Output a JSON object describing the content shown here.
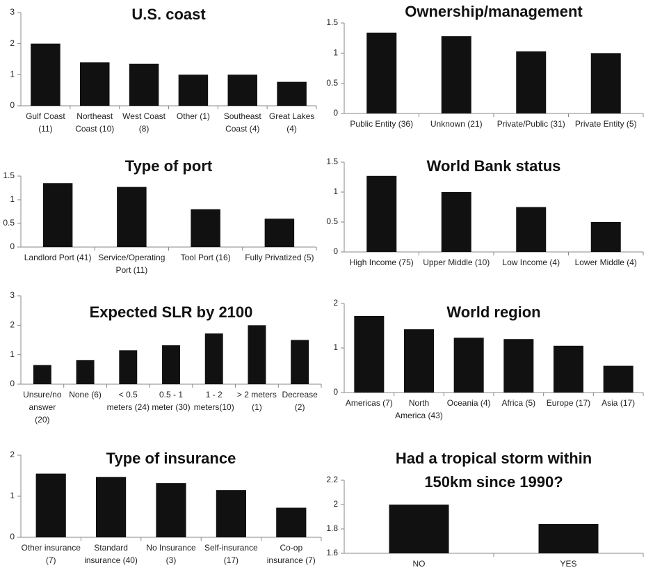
{
  "chart_data": [
    {
      "type": "bar",
      "title": "U.S. coast",
      "categories": [
        "Gulf Coast (11)",
        "Northeast Coast (10)",
        "West Coast (8)",
        "Other (1)",
        "Southeast Coast (4)",
        "Great Lakes (4)"
      ],
      "values": [
        2.0,
        1.4,
        1.35,
        1.0,
        1.0,
        0.77
      ],
      "color": "#111111",
      "ylim": [
        0,
        3
      ],
      "yticks": [
        0,
        1,
        2,
        3
      ]
    },
    {
      "type": "bar",
      "title": "Ownership/management",
      "categories": [
        "Public Entity (36)",
        "Unknown (21)",
        "Private/Public (31)",
        "Private Entity (5)"
      ],
      "values": [
        1.34,
        1.28,
        1.03,
        1.0
      ],
      "color": "#111111",
      "ylim": [
        0,
        1.5
      ],
      "yticks": [
        0,
        0.5,
        1,
        1.5
      ]
    },
    {
      "type": "bar",
      "title": "Type of port",
      "categories": [
        "Landlord Port (41)",
        "Service/Operating Port (11)",
        "Tool Port (16)",
        "Fully Privatized (5)"
      ],
      "values": [
        1.35,
        1.27,
        0.8,
        0.6
      ],
      "color": "#111111",
      "ylim": [
        0,
        1.5
      ],
      "yticks": [
        0,
        0.5,
        1,
        1.5
      ]
    },
    {
      "type": "bar",
      "title": "World Bank status",
      "categories": [
        "High Income (75)",
        "Upper Middle (10)",
        "Low Income (4)",
        "Lower Middle (4)"
      ],
      "values": [
        1.27,
        1.0,
        0.75,
        0.5
      ],
      "color": "#111111",
      "ylim": [
        0,
        1.5
      ],
      "yticks": [
        0,
        0.5,
        1,
        1.5
      ]
    },
    {
      "type": "bar",
      "title": "Expected SLR by 2100",
      "categories": [
        "Unsure/no answer (20)",
        "None (6)",
        "< 0.5 meters (24)",
        "0.5 - 1 meter (30)",
        "1 - 2 meters(10)",
        "> 2 meters (1)",
        "Decrease (2)"
      ],
      "values": [
        0.65,
        0.82,
        1.15,
        1.32,
        1.72,
        2.0,
        1.5
      ],
      "color": "#111111",
      "ylim": [
        0,
        3
      ],
      "yticks": [
        0,
        1,
        2,
        3
      ]
    },
    {
      "type": "bar",
      "title": "World region",
      "categories": [
        "Americas (7)",
        "North America (43)",
        "Oceania (4)",
        "Africa (5)",
        "Europe (17)",
        "Asia (17)"
      ],
      "values": [
        1.72,
        1.42,
        1.23,
        1.2,
        1.05,
        0.6
      ],
      "color": "#111111",
      "ylim": [
        0,
        2
      ],
      "yticks": [
        0,
        1,
        2
      ]
    },
    {
      "type": "bar",
      "title": "Type of insurance",
      "categories": [
        "Other insurance (7)",
        "Standard insurance (40)",
        "No Insurance (3)",
        "Self-insurance (17)",
        "Co-op insurance (7)"
      ],
      "values": [
        1.55,
        1.47,
        1.32,
        1.15,
        0.72
      ],
      "color": "#111111",
      "ylim": [
        0,
        2
      ],
      "yticks": [
        0,
        1,
        2
      ]
    },
    {
      "type": "bar",
      "title": "Had a tropical storm within 150km since 1990?",
      "categories": [
        "NO",
        "YES"
      ],
      "values": [
        2.0,
        1.84
      ],
      "color": "#111111",
      "ylim": [
        1.6,
        2.2
      ],
      "yticks": [
        1.6,
        1.8,
        2,
        2.2
      ]
    }
  ]
}
